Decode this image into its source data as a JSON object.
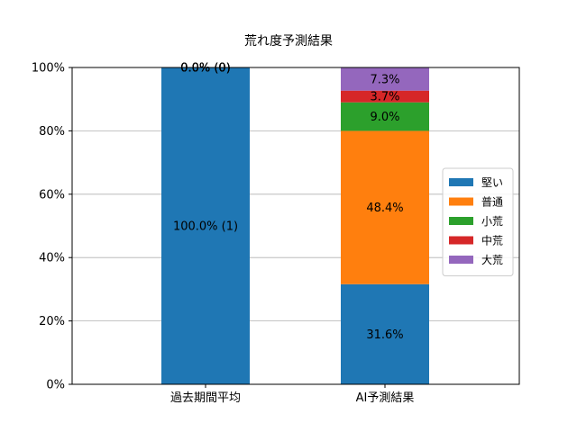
{
  "chart_data": {
    "type": "bar",
    "stacked": true,
    "title": "荒れ度予測結果",
    "xlabel": "",
    "ylabel": "",
    "categories": [
      "過去期間平均",
      "AI予測結果"
    ],
    "ylim": [
      0,
      100
    ],
    "yticks": [
      0,
      20,
      40,
      60,
      80,
      100
    ],
    "ytick_labels": [
      "0%",
      "20%",
      "40%",
      "60%",
      "80%",
      "100%"
    ],
    "grid": "horizontal",
    "legend_position": "center-right",
    "series": [
      {
        "name": "堅い",
        "color": "#1f77b4",
        "values": [
          100.0,
          31.6
        ],
        "labels": [
          "100.0% (1)",
          "31.6%"
        ]
      },
      {
        "name": "普通",
        "color": "#ff7f0e",
        "values": [
          0.0,
          48.4
        ],
        "labels": [
          "0.0% (0)",
          "48.4%"
        ]
      },
      {
        "name": "小荒",
        "color": "#2ca02c",
        "values": [
          0.0,
          9.0
        ],
        "labels": [
          "0.0% (0)",
          "9.0%"
        ]
      },
      {
        "name": "中荒",
        "color": "#d62728",
        "values": [
          0.0,
          3.7
        ],
        "labels": [
          "0.0% (0)",
          "3.7%"
        ]
      },
      {
        "name": "大荒",
        "color": "#9467bd",
        "values": [
          0.0,
          7.3
        ],
        "labels": [
          "0.0% (0)",
          "7.3%"
        ]
      }
    ]
  }
}
